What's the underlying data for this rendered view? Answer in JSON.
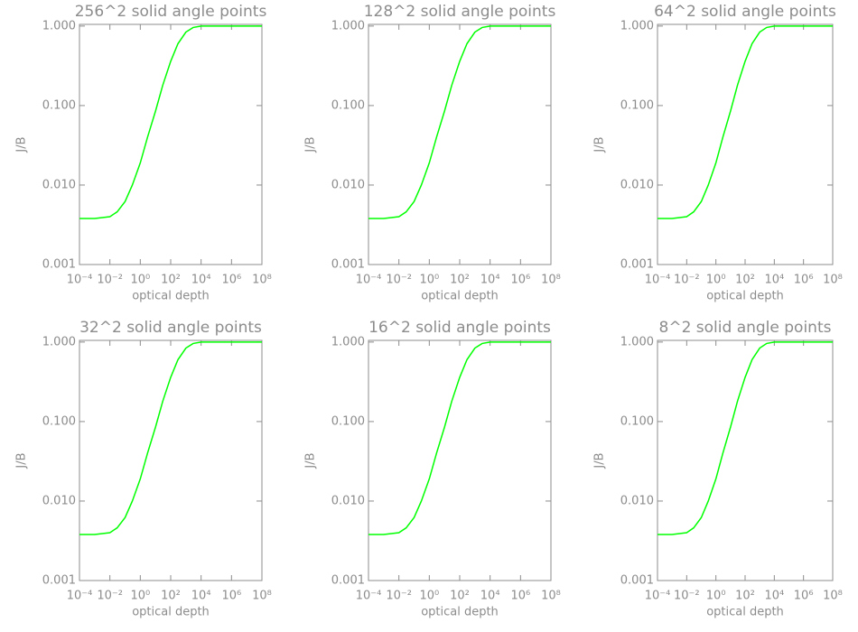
{
  "chart_data": [
    {
      "type": "line",
      "title": "256^2 solid angle points",
      "xlabel": "optical depth",
      "ylabel": "J/B",
      "log_x": true,
      "log_y": true,
      "color": "#00ff00",
      "x": [
        0.0001,
        0.001,
        0.01,
        0.03,
        0.1,
        0.3,
        1,
        3,
        10,
        30,
        100,
        300,
        1000,
        3000,
        10000,
        100000,
        1000000,
        10000000,
        100000000
      ],
      "values": [
        0.0038,
        0.0038,
        0.004,
        0.0046,
        0.0062,
        0.01,
        0.019,
        0.04,
        0.085,
        0.18,
        0.36,
        0.6,
        0.84,
        0.96,
        1.0,
        1.0,
        1.0,
        1.0,
        1.0
      ],
      "xlim": [
        0.0001,
        100000000
      ],
      "ylim": [
        0.001,
        1.05
      ],
      "xticks": [
        {
          "value": 0.0001,
          "label": "10⁻⁴"
        },
        {
          "value": 0.01,
          "label": "10⁻²"
        },
        {
          "value": 1,
          "label": "10⁰"
        },
        {
          "value": 100,
          "label": "10²"
        },
        {
          "value": 10000,
          "label": "10⁴"
        },
        {
          "value": 1000000,
          "label": "10⁶"
        },
        {
          "value": 100000000,
          "label": "10⁸"
        }
      ],
      "yticks": [
        {
          "value": 0.001,
          "label": "0.001"
        },
        {
          "value": 0.01,
          "label": "0.010"
        },
        {
          "value": 0.1,
          "label": "0.100"
        },
        {
          "value": 1,
          "label": "1.000"
        }
      ]
    },
    {
      "type": "line",
      "title": "128^2 solid angle points",
      "xlabel": "optical depth",
      "ylabel": "J/B",
      "log_x": true,
      "log_y": true,
      "color": "#00ff00",
      "x": [
        0.0001,
        0.001,
        0.01,
        0.03,
        0.1,
        0.3,
        1,
        3,
        10,
        30,
        100,
        300,
        1000,
        3000,
        10000,
        100000,
        1000000,
        10000000,
        100000000
      ],
      "values": [
        0.0038,
        0.0038,
        0.004,
        0.0046,
        0.0062,
        0.01,
        0.019,
        0.04,
        0.085,
        0.18,
        0.36,
        0.6,
        0.84,
        0.96,
        1.0,
        1.0,
        1.0,
        1.0,
        1.0
      ],
      "xlim": [
        0.0001,
        100000000
      ],
      "ylim": [
        0.001,
        1.05
      ],
      "xticks": [
        {
          "value": 0.0001,
          "label": "10⁻⁴"
        },
        {
          "value": 0.01,
          "label": "10⁻²"
        },
        {
          "value": 1,
          "label": "10⁰"
        },
        {
          "value": 100,
          "label": "10²"
        },
        {
          "value": 10000,
          "label": "10⁴"
        },
        {
          "value": 1000000,
          "label": "10⁶"
        },
        {
          "value": 100000000,
          "label": "10⁸"
        }
      ],
      "yticks": [
        {
          "value": 0.001,
          "label": "0.001"
        },
        {
          "value": 0.01,
          "label": "0.010"
        },
        {
          "value": 0.1,
          "label": "0.100"
        },
        {
          "value": 1,
          "label": "1.000"
        }
      ]
    },
    {
      "type": "line",
      "title": "64^2 solid angle points",
      "xlabel": "optical depth",
      "ylabel": "J/B",
      "log_x": true,
      "log_y": true,
      "color": "#00ff00",
      "x": [
        0.0001,
        0.001,
        0.01,
        0.03,
        0.1,
        0.3,
        1,
        3,
        10,
        30,
        100,
        300,
        1000,
        3000,
        10000,
        100000,
        1000000,
        10000000,
        100000000
      ],
      "values": [
        0.0038,
        0.0038,
        0.004,
        0.0046,
        0.0062,
        0.01,
        0.019,
        0.04,
        0.085,
        0.18,
        0.36,
        0.6,
        0.84,
        0.96,
        1.0,
        1.0,
        1.0,
        1.0,
        1.0
      ],
      "xlim": [
        0.0001,
        100000000
      ],
      "ylim": [
        0.001,
        1.05
      ],
      "xticks": [
        {
          "value": 0.0001,
          "label": "10⁻⁴"
        },
        {
          "value": 0.01,
          "label": "10⁻²"
        },
        {
          "value": 1,
          "label": "10⁰"
        },
        {
          "value": 100,
          "label": "10²"
        },
        {
          "value": 10000,
          "label": "10⁴"
        },
        {
          "value": 1000000,
          "label": "10⁶"
        },
        {
          "value": 100000000,
          "label": "10⁸"
        }
      ],
      "yticks": [
        {
          "value": 0.001,
          "label": "0.001"
        },
        {
          "value": 0.01,
          "label": "0.010"
        },
        {
          "value": 0.1,
          "label": "0.100"
        },
        {
          "value": 1,
          "label": "1.000"
        }
      ]
    },
    {
      "type": "line",
      "title": "32^2 solid angle points",
      "xlabel": "optical depth",
      "ylabel": "J/B",
      "log_x": true,
      "log_y": true,
      "color": "#00ff00",
      "x": [
        0.0001,
        0.001,
        0.01,
        0.03,
        0.1,
        0.3,
        1,
        3,
        10,
        30,
        100,
        300,
        1000,
        3000,
        10000,
        100000,
        1000000,
        10000000,
        100000000
      ],
      "values": [
        0.0038,
        0.0038,
        0.004,
        0.0046,
        0.0062,
        0.01,
        0.019,
        0.04,
        0.085,
        0.18,
        0.36,
        0.6,
        0.84,
        0.96,
        1.0,
        1.0,
        1.0,
        1.0,
        1.0
      ],
      "xlim": [
        0.0001,
        100000000
      ],
      "ylim": [
        0.001,
        1.05
      ],
      "xticks": [
        {
          "value": 0.0001,
          "label": "10⁻⁴"
        },
        {
          "value": 0.01,
          "label": "10⁻²"
        },
        {
          "value": 1,
          "label": "10⁰"
        },
        {
          "value": 100,
          "label": "10²"
        },
        {
          "value": 10000,
          "label": "10⁴"
        },
        {
          "value": 1000000,
          "label": "10⁶"
        },
        {
          "value": 100000000,
          "label": "10⁸"
        }
      ],
      "yticks": [
        {
          "value": 0.001,
          "label": "0.001"
        },
        {
          "value": 0.01,
          "label": "0.010"
        },
        {
          "value": 0.1,
          "label": "0.100"
        },
        {
          "value": 1,
          "label": "1.000"
        }
      ]
    },
    {
      "type": "line",
      "title": "16^2 solid angle points",
      "xlabel": "optical depth",
      "ylabel": "J/B",
      "log_x": true,
      "log_y": true,
      "color": "#00ff00",
      "x": [
        0.0001,
        0.001,
        0.01,
        0.03,
        0.1,
        0.3,
        1,
        3,
        10,
        30,
        100,
        300,
        1000,
        3000,
        10000,
        100000,
        1000000,
        10000000,
        100000000
      ],
      "values": [
        0.0038,
        0.0038,
        0.004,
        0.0046,
        0.0062,
        0.01,
        0.019,
        0.04,
        0.085,
        0.18,
        0.36,
        0.6,
        0.84,
        0.96,
        1.0,
        1.0,
        1.0,
        1.0,
        1.0
      ],
      "xlim": [
        0.0001,
        100000000
      ],
      "ylim": [
        0.001,
        1.05
      ],
      "xticks": [
        {
          "value": 0.0001,
          "label": "10⁻⁴"
        },
        {
          "value": 0.01,
          "label": "10⁻²"
        },
        {
          "value": 1,
          "label": "10⁰"
        },
        {
          "value": 100,
          "label": "10²"
        },
        {
          "value": 10000,
          "label": "10⁴"
        },
        {
          "value": 1000000,
          "label": "10⁶"
        },
        {
          "value": 100000000,
          "label": "10⁸"
        }
      ],
      "yticks": [
        {
          "value": 0.001,
          "label": "0.001"
        },
        {
          "value": 0.01,
          "label": "0.010"
        },
        {
          "value": 0.1,
          "label": "0.100"
        },
        {
          "value": 1,
          "label": "1.000"
        }
      ]
    },
    {
      "type": "line",
      "title": "8^2 solid angle points",
      "xlabel": "optical depth",
      "ylabel": "J/B",
      "log_x": true,
      "log_y": true,
      "color": "#00ff00",
      "x": [
        0.0001,
        0.001,
        0.01,
        0.03,
        0.1,
        0.3,
        1,
        3,
        10,
        30,
        100,
        300,
        1000,
        3000,
        10000,
        100000,
        1000000,
        10000000,
        100000000
      ],
      "values": [
        0.0038,
        0.0038,
        0.004,
        0.0046,
        0.0062,
        0.01,
        0.019,
        0.04,
        0.085,
        0.18,
        0.36,
        0.6,
        0.84,
        0.96,
        1.0,
        1.0,
        1.0,
        1.0,
        1.0
      ],
      "xlim": [
        0.0001,
        100000000
      ],
      "ylim": [
        0.001,
        1.05
      ],
      "xticks": [
        {
          "value": 0.0001,
          "label": "10⁻⁴"
        },
        {
          "value": 0.01,
          "label": "10⁻²"
        },
        {
          "value": 1,
          "label": "10⁰"
        },
        {
          "value": 100,
          "label": "10²"
        },
        {
          "value": 10000,
          "label": "10⁴"
        },
        {
          "value": 1000000,
          "label": "10⁶"
        },
        {
          "value": 100000000,
          "label": "10⁸"
        }
      ],
      "yticks": [
        {
          "value": 0.001,
          "label": "0.001"
        },
        {
          "value": 0.01,
          "label": "0.010"
        },
        {
          "value": 0.1,
          "label": "0.100"
        },
        {
          "value": 1,
          "label": "1.000"
        }
      ]
    }
  ]
}
